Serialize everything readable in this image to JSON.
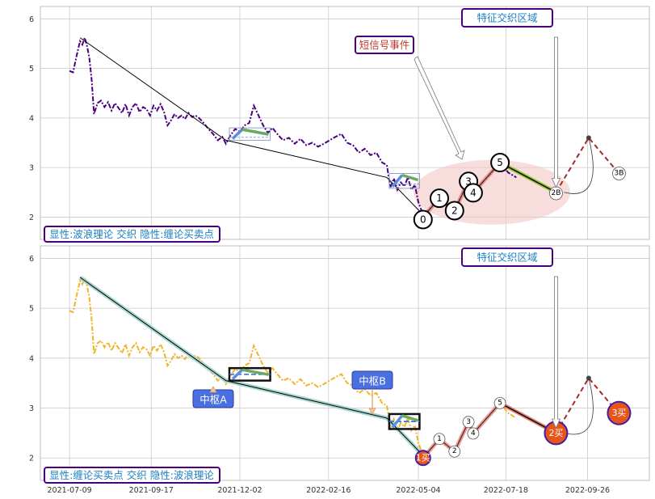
{
  "chart_data": [
    {
      "type": "line",
      "xlabel": "",
      "ylabel": "",
      "ylim": [
        1.55,
        6.25
      ],
      "y_ticks": [
        2,
        3,
        4,
        5,
        6
      ],
      "x_ticks": [
        "2021-07-09",
        "2021-09-17",
        "2021-12-02",
        "2022-02-16",
        "2022-05-04",
        "2022-07-18",
        "2022-09-26"
      ],
      "legend_text": "显性:波浪理论 交织 隐性:缠论买卖点",
      "annotations": {
        "short_signal": "短信号事件",
        "feature_zone": "特征交织区域"
      },
      "wave_labels": [
        {
          "label": "0",
          "x": "2022-05-08",
          "y": 1.95
        },
        {
          "label": "1",
          "x": "2022-05-22",
          "y": 2.38
        },
        {
          "label": "2",
          "x": "2022-06-04",
          "y": 2.13
        },
        {
          "label": "3",
          "x": "2022-06-16",
          "y": 2.72
        },
        {
          "label": "4",
          "x": "2022-06-20",
          "y": 2.49
        },
        {
          "label": "5",
          "x": "2022-07-13",
          "y": 3.1
        },
        {
          "label": "2B",
          "x": "2022-08-30",
          "y": 2.48
        },
        {
          "label": "3B",
          "x": "2022-10-23",
          "y": 2.88
        }
      ]
    },
    {
      "type": "line",
      "xlabel": "",
      "ylabel": "",
      "ylim": [
        1.55,
        6.25
      ],
      "y_ticks": [
        2,
        3,
        4,
        5,
        6
      ],
      "x_ticks": [
        "2021-07-09",
        "2021-09-17",
        "2021-12-02",
        "2022-02-16",
        "2022-05-04",
        "2022-07-18",
        "2022-09-26"
      ],
      "legend_text": "显性:缠论买卖点 交织 隐性:波浪理论",
      "annotations": {
        "feature_zone": "特征交织区域",
        "pivot_a": "中枢A",
        "pivot_b": "中枢B"
      },
      "wave_labels": [
        {
          "label": "1",
          "x": "2022-05-22",
          "y": 2.38
        },
        {
          "label": "2",
          "x": "2022-06-04",
          "y": 2.13
        },
        {
          "label": "3",
          "x": "2022-06-16",
          "y": 2.72
        },
        {
          "label": "4",
          "x": "2022-06-20",
          "y": 2.49
        },
        {
          "label": "5",
          "x": "2022-07-13",
          "y": 3.1
        }
      ],
      "buy_points": [
        {
          "label": "1买",
          "x": "2022-05-08",
          "y": 2.0
        },
        {
          "label": "2买",
          "x": "2022-08-30",
          "y": 2.5
        },
        {
          "label": "3买",
          "x": "2022-10-23",
          "y": 2.9
        }
      ]
    }
  ],
  "series": {
    "price_top": [
      [
        "2021-07-09",
        4.95
      ],
      [
        "2021-07-12",
        4.92
      ],
      [
        "2021-07-15",
        5.25
      ],
      [
        "2021-07-18",
        5.55
      ],
      [
        "2021-07-20",
        5.48
      ],
      [
        "2021-07-22",
        5.62
      ],
      [
        "2021-07-24",
        5.45
      ],
      [
        "2021-07-26",
        5.2
      ],
      [
        "2021-07-28",
        4.75
      ],
      [
        "2021-07-30",
        4.08
      ],
      [
        "2021-08-02",
        4.3
      ],
      [
        "2021-08-05",
        4.35
      ],
      [
        "2021-08-08",
        4.22
      ],
      [
        "2021-08-11",
        4.32
      ],
      [
        "2021-08-14",
        4.15
      ],
      [
        "2021-08-17",
        4.3
      ],
      [
        "2021-08-20",
        4.2
      ],
      [
        "2021-08-23",
        4.1
      ],
      [
        "2021-08-26",
        4.28
      ],
      [
        "2021-08-29",
        4.05
      ],
      [
        "2021-09-01",
        4.22
      ],
      [
        "2021-09-04",
        4.3
      ],
      [
        "2021-09-07",
        4.12
      ],
      [
        "2021-09-10",
        4.22
      ],
      [
        "2021-09-13",
        4.18
      ],
      [
        "2021-09-16",
        4.05
      ],
      [
        "2021-09-19",
        4.25
      ],
      [
        "2021-09-22",
        4.15
      ],
      [
        "2021-09-25",
        4.28
      ],
      [
        "2021-09-28",
        4.12
      ],
      [
        "2021-10-01",
        3.85
      ],
      [
        "2021-10-04",
        3.95
      ],
      [
        "2021-10-07",
        4.08
      ],
      [
        "2021-10-10",
        4.0
      ],
      [
        "2021-10-13",
        4.05
      ],
      [
        "2021-10-16",
        3.98
      ],
      [
        "2021-10-19",
        4.1
      ],
      [
        "2021-10-22",
        4.02
      ],
      [
        "2021-10-25",
        4.05
      ],
      [
        "2021-10-28",
        4.0
      ],
      [
        "2021-11-01",
        3.9
      ],
      [
        "2021-11-05",
        3.78
      ],
      [
        "2021-11-09",
        3.68
      ],
      [
        "2021-11-13",
        3.55
      ],
      [
        "2021-11-17",
        3.62
      ],
      [
        "2021-11-20",
        3.48
      ],
      [
        "2021-11-24",
        3.65
      ],
      [
        "2021-11-28",
        3.78
      ],
      [
        "2021-12-02",
        3.72
      ],
      [
        "2021-12-06",
        3.85
      ],
      [
        "2021-12-10",
        3.9
      ],
      [
        "2021-12-14",
        4.25
      ],
      [
        "2021-12-18",
        4.05
      ],
      [
        "2021-12-22",
        3.85
      ],
      [
        "2021-12-26",
        3.7
      ],
      [
        "2021-12-30",
        3.8
      ],
      [
        "2022-01-03",
        3.68
      ],
      [
        "2022-01-08",
        3.55
      ],
      [
        "2022-01-13",
        3.6
      ],
      [
        "2022-01-18",
        3.48
      ],
      [
        "2022-01-23",
        3.58
      ],
      [
        "2022-01-28",
        3.45
      ],
      [
        "2022-02-02",
        3.5
      ],
      [
        "2022-02-07",
        3.42
      ],
      [
        "2022-02-12",
        3.48
      ],
      [
        "2022-02-17",
        3.55
      ],
      [
        "2022-02-22",
        3.62
      ],
      [
        "2022-02-27",
        3.68
      ],
      [
        "2022-03-04",
        3.5
      ],
      [
        "2022-03-09",
        3.45
      ],
      [
        "2022-03-14",
        3.3
      ],
      [
        "2022-03-19",
        3.38
      ],
      [
        "2022-03-24",
        3.25
      ],
      [
        "2022-03-29",
        3.3
      ],
      [
        "2022-04-03",
        3.1
      ],
      [
        "2022-04-07",
        3.05
      ],
      [
        "2022-04-10",
        2.6
      ],
      [
        "2022-04-13",
        2.78
      ],
      [
        "2022-04-16",
        2.55
      ],
      [
        "2022-04-19",
        2.7
      ],
      [
        "2022-04-22",
        2.62
      ],
      [
        "2022-04-25",
        2.8
      ],
      [
        "2022-04-28",
        2.55
      ],
      [
        "2022-05-01",
        2.65
      ],
      [
        "2022-05-04",
        2.3
      ],
      [
        "2022-05-08",
        2.05
      ],
      [
        "2022-05-13",
        2.15
      ],
      [
        "2022-05-18",
        2.28
      ],
      [
        "2022-05-22",
        2.38
      ],
      [
        "2022-05-28",
        2.25
      ],
      [
        "2022-06-04",
        2.13
      ],
      [
        "2022-06-10",
        2.45
      ],
      [
        "2022-06-16",
        2.72
      ],
      [
        "2022-06-20",
        2.49
      ],
      [
        "2022-06-28",
        2.7
      ],
      [
        "2022-07-06",
        2.9
      ],
      [
        "2022-07-13",
        3.1
      ],
      [
        "2022-07-20",
        2.9
      ],
      [
        "2022-07-27",
        2.8
      ]
    ],
    "trend_segments": [
      [
        [
          "2021-07-18",
          5.62
        ],
        [
          "2021-11-20",
          3.55
        ],
        [
          "2022-04-07",
          2.8
        ],
        [
          "2022-05-08",
          2.05
        ]
      ]
    ],
    "pivot_a": {
      "x": [
        "2021-11-23",
        "2021-12-28"
      ],
      "y": [
        3.55,
        3.8
      ]
    },
    "pivot_b": {
      "x": [
        "2022-04-09",
        "2022-05-05"
      ],
      "y": [
        2.58,
        2.88
      ]
    },
    "wave_path": [
      [
        "2022-05-08",
        2.0
      ],
      [
        "2022-05-22",
        2.38
      ],
      [
        "2022-06-04",
        2.13
      ],
      [
        "2022-06-16",
        2.72
      ],
      [
        "2022-06-20",
        2.49
      ],
      [
        "2022-07-13",
        3.1
      ],
      [
        "2022-08-30",
        2.5
      ]
    ],
    "projection": [
      [
        "2022-08-30",
        2.5
      ],
      [
        "2022-09-27",
        3.6
      ],
      [
        "2022-10-23",
        2.88
      ]
    ],
    "colors": {
      "price_top": "#4b0082",
      "price_bottom": "#f0b429",
      "trend": "#000000",
      "wave": "#e8847a",
      "projection": "#a52a2a",
      "pivot_up": "#5b8ce0",
      "pivot_down": "#6aaa5e",
      "buy_fill": "#e8551a",
      "buy_ring": "#3b1fa8",
      "label_border": "#4b0082",
      "label_text": "#1b7fc4",
      "signal_text": "#c0392b",
      "pivot_label_bg": "#4a6fe0",
      "ellipse": "#f4c7c7"
    }
  }
}
